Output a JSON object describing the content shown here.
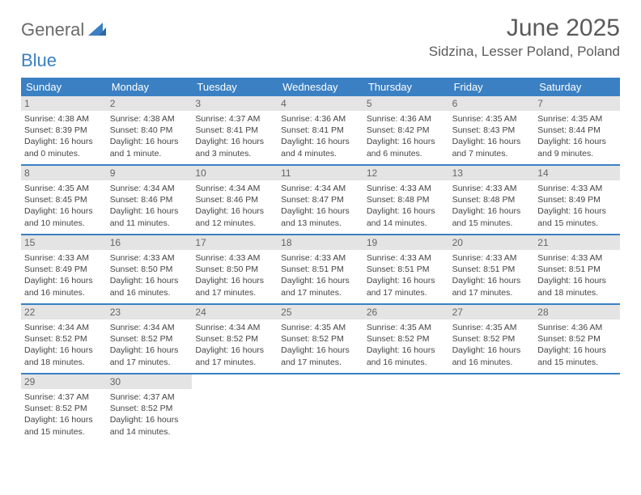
{
  "brand": {
    "part1": "General",
    "part2": "Blue"
  },
  "title": "June 2025",
  "location": "Sidzina, Lesser Poland, Poland",
  "colors": {
    "header_bg": "#3a80c3",
    "daynum_bg": "#e4e4e4",
    "text": "#444444",
    "title_text": "#5a5a5a"
  },
  "typography": {
    "title_fontsize": 30,
    "location_fontsize": 17,
    "weekday_fontsize": 13,
    "daynum_fontsize": 12,
    "body_fontsize": 10.5
  },
  "weekdays": [
    "Sunday",
    "Monday",
    "Tuesday",
    "Wednesday",
    "Thursday",
    "Friday",
    "Saturday"
  ],
  "days": [
    {
      "n": "1",
      "sr": "4:38 AM",
      "ss": "8:39 PM",
      "dl": "16 hours and 0 minutes."
    },
    {
      "n": "2",
      "sr": "4:38 AM",
      "ss": "8:40 PM",
      "dl": "16 hours and 1 minute."
    },
    {
      "n": "3",
      "sr": "4:37 AM",
      "ss": "8:41 PM",
      "dl": "16 hours and 3 minutes."
    },
    {
      "n": "4",
      "sr": "4:36 AM",
      "ss": "8:41 PM",
      "dl": "16 hours and 4 minutes."
    },
    {
      "n": "5",
      "sr": "4:36 AM",
      "ss": "8:42 PM",
      "dl": "16 hours and 6 minutes."
    },
    {
      "n": "6",
      "sr": "4:35 AM",
      "ss": "8:43 PM",
      "dl": "16 hours and 7 minutes."
    },
    {
      "n": "7",
      "sr": "4:35 AM",
      "ss": "8:44 PM",
      "dl": "16 hours and 9 minutes."
    },
    {
      "n": "8",
      "sr": "4:35 AM",
      "ss": "8:45 PM",
      "dl": "16 hours and 10 minutes."
    },
    {
      "n": "9",
      "sr": "4:34 AM",
      "ss": "8:46 PM",
      "dl": "16 hours and 11 minutes."
    },
    {
      "n": "10",
      "sr": "4:34 AM",
      "ss": "8:46 PM",
      "dl": "16 hours and 12 minutes."
    },
    {
      "n": "11",
      "sr": "4:34 AM",
      "ss": "8:47 PM",
      "dl": "16 hours and 13 minutes."
    },
    {
      "n": "12",
      "sr": "4:33 AM",
      "ss": "8:48 PM",
      "dl": "16 hours and 14 minutes."
    },
    {
      "n": "13",
      "sr": "4:33 AM",
      "ss": "8:48 PM",
      "dl": "16 hours and 15 minutes."
    },
    {
      "n": "14",
      "sr": "4:33 AM",
      "ss": "8:49 PM",
      "dl": "16 hours and 15 minutes."
    },
    {
      "n": "15",
      "sr": "4:33 AM",
      "ss": "8:49 PM",
      "dl": "16 hours and 16 minutes."
    },
    {
      "n": "16",
      "sr": "4:33 AM",
      "ss": "8:50 PM",
      "dl": "16 hours and 16 minutes."
    },
    {
      "n": "17",
      "sr": "4:33 AM",
      "ss": "8:50 PM",
      "dl": "16 hours and 17 minutes."
    },
    {
      "n": "18",
      "sr": "4:33 AM",
      "ss": "8:51 PM",
      "dl": "16 hours and 17 minutes."
    },
    {
      "n": "19",
      "sr": "4:33 AM",
      "ss": "8:51 PM",
      "dl": "16 hours and 17 minutes."
    },
    {
      "n": "20",
      "sr": "4:33 AM",
      "ss": "8:51 PM",
      "dl": "16 hours and 17 minutes."
    },
    {
      "n": "21",
      "sr": "4:33 AM",
      "ss": "8:51 PM",
      "dl": "16 hours and 18 minutes."
    },
    {
      "n": "22",
      "sr": "4:34 AM",
      "ss": "8:52 PM",
      "dl": "16 hours and 18 minutes."
    },
    {
      "n": "23",
      "sr": "4:34 AM",
      "ss": "8:52 PM",
      "dl": "16 hours and 17 minutes."
    },
    {
      "n": "24",
      "sr": "4:34 AM",
      "ss": "8:52 PM",
      "dl": "16 hours and 17 minutes."
    },
    {
      "n": "25",
      "sr": "4:35 AM",
      "ss": "8:52 PM",
      "dl": "16 hours and 17 minutes."
    },
    {
      "n": "26",
      "sr": "4:35 AM",
      "ss": "8:52 PM",
      "dl": "16 hours and 16 minutes."
    },
    {
      "n": "27",
      "sr": "4:35 AM",
      "ss": "8:52 PM",
      "dl": "16 hours and 16 minutes."
    },
    {
      "n": "28",
      "sr": "4:36 AM",
      "ss": "8:52 PM",
      "dl": "16 hours and 15 minutes."
    },
    {
      "n": "29",
      "sr": "4:37 AM",
      "ss": "8:52 PM",
      "dl": "16 hours and 15 minutes."
    },
    {
      "n": "30",
      "sr": "4:37 AM",
      "ss": "8:52 PM",
      "dl": "16 hours and 14 minutes."
    }
  ],
  "labels": {
    "sunrise": "Sunrise: ",
    "sunset": "Sunset: ",
    "daylight": "Daylight: "
  },
  "layout": {
    "first_weekday_offset": 0,
    "total_cells": 35
  }
}
